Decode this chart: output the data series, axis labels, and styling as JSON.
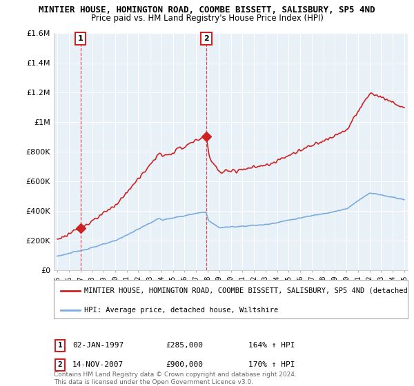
{
  "title": "MINTIER HOUSE, HOMINGTON ROAD, COOMBE BISSETT, SALISBURY, SP5 4ND",
  "subtitle": "Price paid vs. HM Land Registry's House Price Index (HPI)",
  "hpi_label": "HPI: Average price, detached house, Wiltshire",
  "property_label": "MINTIER HOUSE, HOMINGTON ROAD, COOMBE BISSETT, SALISBURY, SP5 4ND (detached",
  "sale1_date": "02-JAN-1997",
  "sale1_price_str": "£285,000",
  "sale1_hpi": "164% ↑ HPI",
  "sale2_date": "14-NOV-2007",
  "sale2_price_str": "£900,000",
  "sale2_hpi": "170% ↑ HPI",
  "copyright": "Contains HM Land Registry data © Crown copyright and database right 2024.\nThis data is licensed under the Open Government Licence v3.0.",
  "ylim": [
    0,
    1600000
  ],
  "yticks": [
    0,
    200000,
    400000,
    600000,
    800000,
    1000000,
    1200000,
    1400000,
    1600000
  ],
  "sale1_year": 1997.01,
  "sale1_price": 285000,
  "sale2_year": 2007.87,
  "sale2_price": 900000,
  "hpi_color": "#7aabe0",
  "property_color": "#cc2222",
  "dashed_color": "#cc3333",
  "background_color": "#ffffff",
  "plot_bg_color": "#e8f0f8",
  "grid_color": "#ffffff"
}
